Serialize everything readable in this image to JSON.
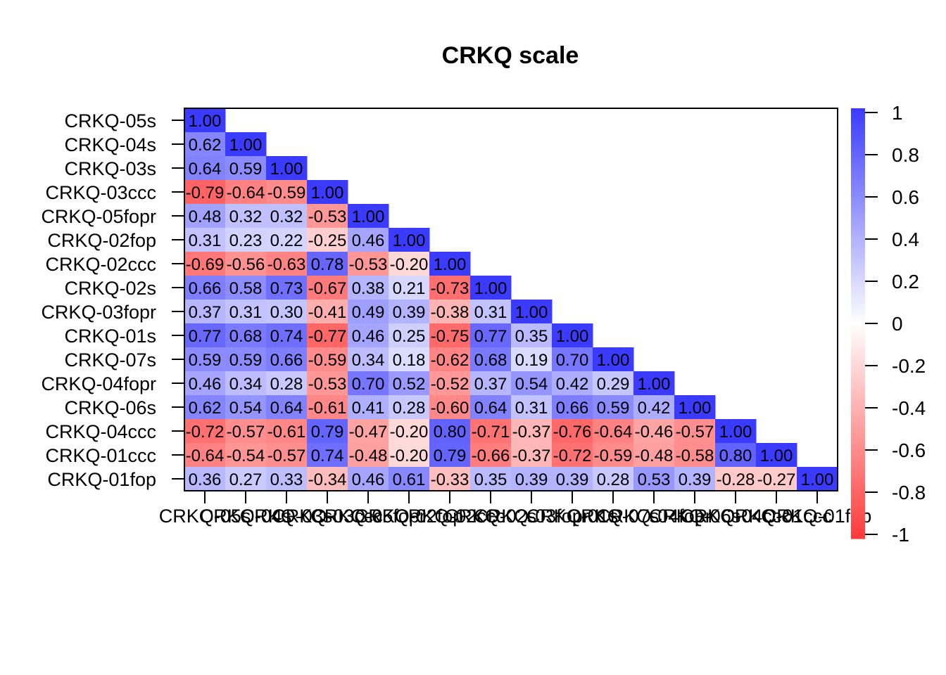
{
  "chart_data": {
    "type": "heatmap",
    "title": "CRKQ scale",
    "xlabel": "",
    "ylabel": "",
    "variables": [
      "CRKQ-05s",
      "CRKQ-04s",
      "CRKQ-03s",
      "CRKQ-03ccc",
      "CRKQ-05fopr",
      "CRKQ-02fop",
      "CRKQ-02ccc",
      "CRKQ-02s",
      "CRKQ-03fopr",
      "CRKQ-01s",
      "CRKQ-07s",
      "CRKQ-04fopr",
      "CRKQ-06s",
      "CRKQ-04ccc",
      "CRKQ-01ccc",
      "CRKQ-01fop"
    ],
    "layout": "lower-triangle",
    "matrix": [
      [
        "1.00"
      ],
      [
        "0.62",
        "1.00"
      ],
      [
        "0.64",
        "0.59",
        "1.00"
      ],
      [
        "-0.79",
        "-0.64",
        "-0.59",
        "1.00"
      ],
      [
        "0.48",
        "0.32",
        "0.32",
        "-0.53",
        "1.00"
      ],
      [
        "0.31",
        "0.23",
        "0.22",
        "-0.25",
        "0.46",
        "1.00"
      ],
      [
        "-0.69",
        "-0.56",
        "-0.63",
        "0.78",
        "-0.53",
        "-0.20",
        "1.00"
      ],
      [
        "0.66",
        "0.58",
        "0.73",
        "-0.67",
        "0.38",
        "0.21",
        "-0.73",
        "1.00"
      ],
      [
        "0.37",
        "0.31",
        "0.30",
        "-0.41",
        "0.49",
        "0.39",
        "-0.38",
        "0.31",
        "1.00"
      ],
      [
        "0.77",
        "0.68",
        "0.74",
        "-0.77",
        "0.46",
        "0.25",
        "-0.75",
        "0.77",
        "0.35",
        "1.00"
      ],
      [
        "0.59",
        "0.59",
        "0.66",
        "-0.59",
        "0.34",
        "0.18",
        "-0.62",
        "0.68",
        "0.19",
        "0.70",
        "1.00"
      ],
      [
        "0.46",
        "0.34",
        "0.28",
        "-0.53",
        "0.70",
        "0.52",
        "-0.52",
        "0.37",
        "0.54",
        "0.42",
        "0.29",
        "1.00"
      ],
      [
        "0.62",
        "0.54",
        "0.64",
        "-0.61",
        "0.41",
        "0.28",
        "-0.60",
        "0.64",
        "0.31",
        "0.66",
        "0.59",
        "0.42",
        "1.00"
      ],
      [
        "-0.72",
        "-0.57",
        "-0.61",
        "0.79",
        "-0.47",
        "-0.20",
        "0.80",
        "-0.71",
        "-0.37",
        "-0.76",
        "-0.64",
        "-0.46",
        "-0.57",
        "1.00"
      ],
      [
        "-0.64",
        "-0.54",
        "-0.57",
        "0.74",
        "-0.48",
        "-0.20",
        "0.79",
        "-0.66",
        "-0.37",
        "-0.72",
        "-0.59",
        "-0.48",
        "-0.58",
        "0.80",
        "1.00"
      ],
      [
        "0.36",
        "0.27",
        "0.33",
        "-0.34",
        "0.46",
        "0.61",
        "-0.33",
        "0.35",
        "0.39",
        "0.39",
        "0.28",
        "0.53",
        "0.39",
        "-0.28",
        "-0.27",
        "1.00"
      ]
    ],
    "color_scale": {
      "min": -1,
      "max": 1,
      "low": "#ff3a3a",
      "mid": "#ffffff",
      "high": "#3b3bff"
    },
    "legend_ticks": [
      "1",
      "0.8",
      "0.6",
      "0.4",
      "0.2",
      "0",
      "-0.2",
      "-0.4",
      "-0.6",
      "-0.8",
      "-1"
    ],
    "legend_placement": "right",
    "grid": false
  }
}
